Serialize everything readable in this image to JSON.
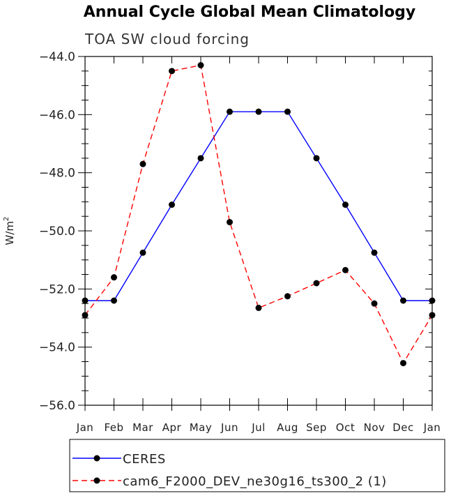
{
  "chart_data": {
    "type": "line",
    "title": "Annual Cycle Global Mean Climatology",
    "subtitle": "TOA SW cloud forcing",
    "xlabel": "",
    "ylabel": "W/m",
    "ylabel_superscript": "2",
    "categories": [
      "Jan",
      "Feb",
      "Mar",
      "Apr",
      "May",
      "Jun",
      "Jul",
      "Aug",
      "Sep",
      "Oct",
      "Nov",
      "Dec",
      "Jan"
    ],
    "ylim": [
      -56.0,
      -44.0
    ],
    "yticks": [
      -44.0,
      -46.0,
      -48.0,
      -50.0,
      -52.0,
      -54.0,
      -56.0
    ],
    "ytick_labels": [
      "−44.0",
      "−46.0",
      "−48.0",
      "−50.0",
      "−52.0",
      "−54.0",
      "−56.0"
    ],
    "grid": false,
    "legend_position": "bottom",
    "series": [
      {
        "name": "CERES",
        "color": "#0000ff",
        "line_style": "solid",
        "marker": "filled-circle",
        "values": [
          -52.4,
          -52.4,
          -50.75,
          -49.1,
          -47.5,
          -45.9,
          -45.9,
          -45.9,
          -47.5,
          -49.1,
          -50.75,
          -52.4,
          -52.4
        ]
      },
      {
        "name": "cam6_F2000_DEV_ne30g16_ts300_2 (1)",
        "color": "#ff0000",
        "line_style": "dashed",
        "marker": "filled-circle",
        "values": [
          -52.9,
          -51.6,
          -47.7,
          -44.5,
          -44.3,
          -49.7,
          -52.65,
          -52.25,
          -51.8,
          -51.35,
          -52.5,
          -54.55,
          -52.9
        ]
      }
    ]
  }
}
